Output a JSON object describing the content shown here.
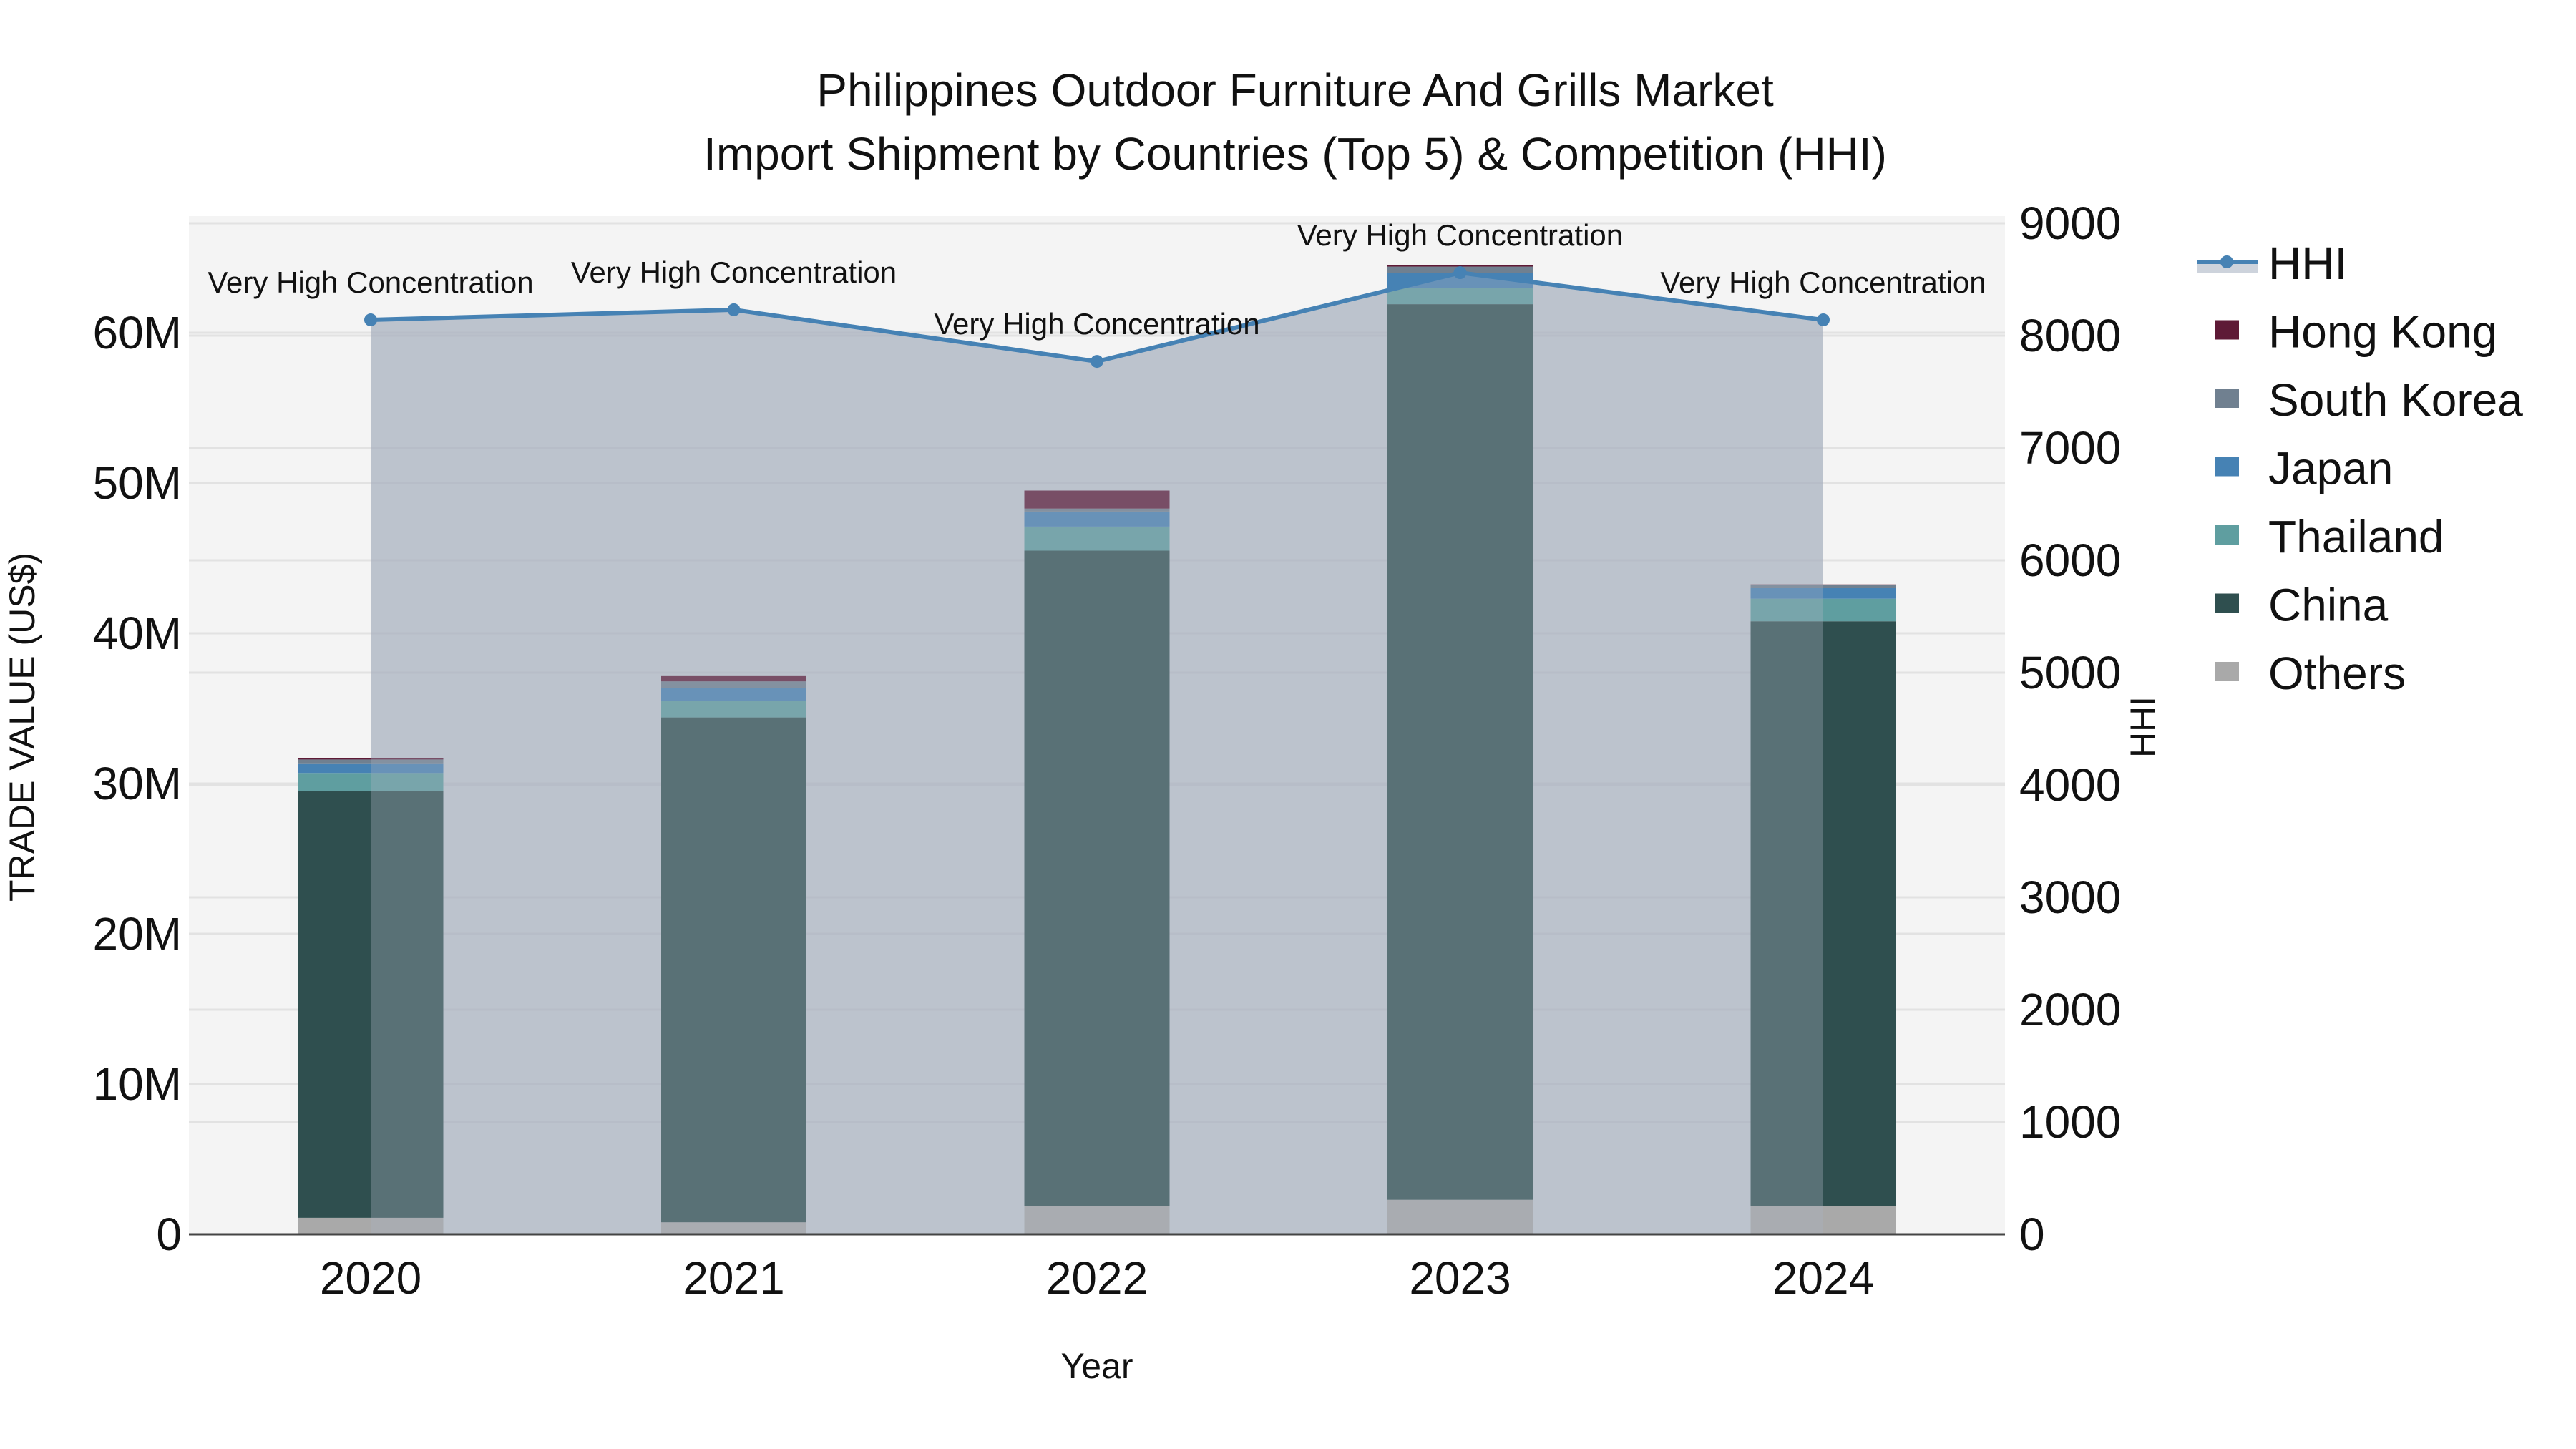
{
  "chart_data": {
    "type": "bar",
    "subtype": "stacked bar with secondary-axis line and area",
    "title": "Philippines Outdoor Furniture And Grills Market",
    "subtitle": "Import Shipment by Countries (Top 5) & Competition (HHI)",
    "xlabel": "Year",
    "ylabel": "TRADE VALUE (US$)",
    "y2label": "HHI",
    "categories": [
      "2020",
      "2021",
      "2022",
      "2023",
      "2024"
    ],
    "ylim": [
      0,
      67000000
    ],
    "y2lim": [
      0,
      9060
    ],
    "yticks": [
      0,
      10000000,
      20000000,
      30000000,
      40000000,
      50000000,
      60000000
    ],
    "ytick_labels": [
      "0",
      "10M",
      "20M",
      "30M",
      "40M",
      "50M",
      "60M"
    ],
    "y2ticks": [
      0,
      1000,
      2000,
      3000,
      4000,
      5000,
      6000,
      7000,
      8000,
      9000
    ],
    "y2tick_labels": [
      "0",
      "1000",
      "2000",
      "3000",
      "4000",
      "5000",
      "6000",
      "7000",
      "8000",
      "9000"
    ],
    "grid": true,
    "legend_position": "right",
    "series": [
      {
        "name": "Others",
        "color": "#A9A9A9",
        "values": [
          1100000,
          800000,
          1900000,
          2300000,
          1900000
        ]
      },
      {
        "name": "China",
        "color": "#2F4F4F",
        "values": [
          28400000,
          33600000,
          43600000,
          59600000,
          38900000
        ]
      },
      {
        "name": "Thailand",
        "color": "#5F9EA0",
        "values": [
          1200000,
          1100000,
          1600000,
          1100000,
          1500000
        ]
      },
      {
        "name": "Japan",
        "color": "#4682B4",
        "values": [
          600000,
          850000,
          1000000,
          1000000,
          700000
        ]
      },
      {
        "name": "South Korea",
        "color": "#708090",
        "values": [
          300000,
          450000,
          200000,
          400000,
          200000
        ]
      },
      {
        "name": "Hong Kong",
        "color": "#5E1A36",
        "values": [
          100000,
          350000,
          1200000,
          100000,
          50000
        ]
      }
    ],
    "line_series": {
      "name": "HHI",
      "axis": "y2",
      "color": "#4682B4",
      "fill_color": "#A9B1C0",
      "values": [
        8140,
        8230,
        7770,
        8560,
        8140
      ],
      "annotations": [
        "Very High Concentration",
        "Very High Concentration",
        "Very High Concentration",
        "Very High Concentration",
        "Very High Concentration"
      ]
    }
  },
  "legend": {
    "items": [
      {
        "label": "HHI",
        "kind": "line",
        "color": "#4682B4"
      },
      {
        "label": "Hong Kong",
        "kind": "box",
        "color": "#5E1A36"
      },
      {
        "label": "South Korea",
        "kind": "box",
        "color": "#708090"
      },
      {
        "label": "Japan",
        "kind": "box",
        "color": "#4682B4"
      },
      {
        "label": "Thailand",
        "kind": "box",
        "color": "#5F9EA0"
      },
      {
        "label": "China",
        "kind": "box",
        "color": "#2F4F4F"
      },
      {
        "label": "Others",
        "kind": "box",
        "color": "#A9A9A9"
      }
    ]
  }
}
